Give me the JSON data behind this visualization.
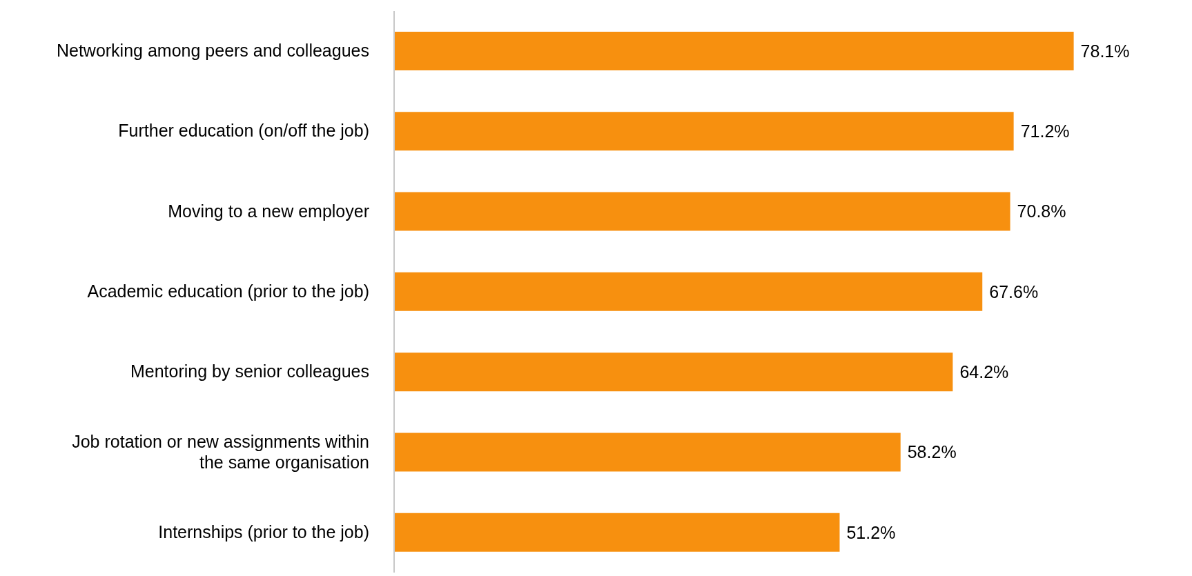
{
  "chart_data": {
    "type": "bar",
    "orientation": "horizontal",
    "categories": [
      "Networking among peers and colleagues",
      "Further education (on/off the job)",
      "Moving to a new employer",
      "Academic education (prior to the job)",
      "Mentoring by senior colleagues",
      "Job rotation or new assignments within the same organisation",
      "Internships (prior to the job)"
    ],
    "values": [
      78.1,
      71.2,
      70.8,
      67.6,
      64.2,
      58.2,
      51.2
    ],
    "value_labels": [
      "78.1%",
      "71.2%",
      "70.8%",
      "67.6%",
      "64.2%",
      "58.2%",
      "51.2%"
    ],
    "color": "#f7900f",
    "grid": false,
    "legend": false
  }
}
